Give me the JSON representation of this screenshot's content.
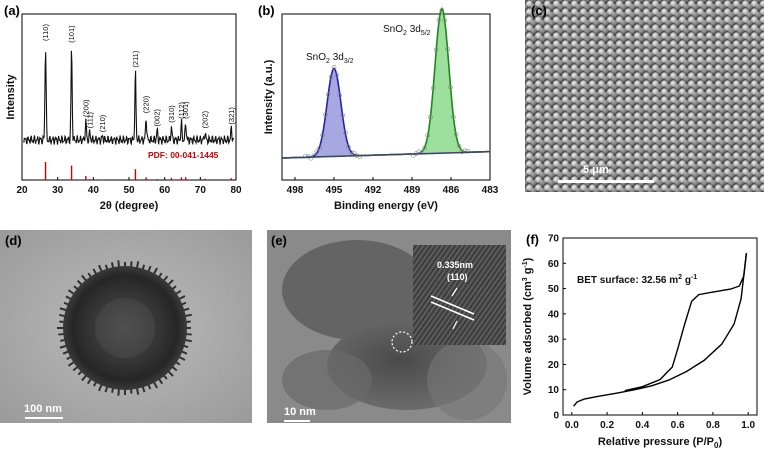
{
  "panels": {
    "a": {
      "label": "(a)"
    },
    "b": {
      "label": "(b)"
    },
    "c": {
      "label": "(c)",
      "scale_bar": "5 μm"
    },
    "d": {
      "label": "(d)",
      "scale_bar": "100 nm"
    },
    "e": {
      "label": "(e)",
      "scale_bar": "10 nm",
      "inset_spacing": "0.335nm",
      "inset_plane": "(110)"
    },
    "f": {
      "label": "(f)"
    }
  },
  "chart_data": [
    {
      "panel": "a",
      "type": "line",
      "xlabel": "2θ (degree)",
      "ylabel": "Intensity",
      "xlim": [
        20,
        80
      ],
      "xticks": [
        20,
        30,
        40,
        50,
        60,
        70,
        80
      ],
      "reference_label": "PDF: 00-041-1445",
      "colors": {
        "pattern": "#111111",
        "reference": "#d40000"
      },
      "peaks": [
        {
          "x": 26.6,
          "label": "(110)",
          "rel_height": 1.0
        },
        {
          "x": 33.9,
          "label": "(101)",
          "rel_height": 0.98
        },
        {
          "x": 37.9,
          "label": "(200)",
          "rel_height": 0.2
        },
        {
          "x": 39.0,
          "label": "(111)",
          "rel_height": 0.08
        },
        {
          "x": 42.6,
          "label": "(210)",
          "rel_height": 0.04
        },
        {
          "x": 51.8,
          "label": "(211)",
          "rel_height": 0.72
        },
        {
          "x": 54.8,
          "label": "(220)",
          "rel_height": 0.24
        },
        {
          "x": 57.9,
          "label": "(002)",
          "rel_height": 0.1
        },
        {
          "x": 61.9,
          "label": "(310)",
          "rel_height": 0.14
        },
        {
          "x": 64.7,
          "label": "(112)",
          "rel_height": 0.18
        },
        {
          "x": 65.9,
          "label": "(301)",
          "rel_height": 0.18
        },
        {
          "x": 71.3,
          "label": "(202)",
          "rel_height": 0.08
        },
        {
          "x": 78.7,
          "label": "(321)",
          "rel_height": 0.12
        }
      ],
      "reference_lines": [
        {
          "x": 26.6,
          "h": 1.0
        },
        {
          "x": 33.9,
          "h": 0.8
        },
        {
          "x": 37.9,
          "h": 0.22
        },
        {
          "x": 39.0,
          "h": 0.05
        },
        {
          "x": 42.6,
          "h": 0.03
        },
        {
          "x": 51.8,
          "h": 0.6
        },
        {
          "x": 54.8,
          "h": 0.15
        },
        {
          "x": 57.9,
          "h": 0.05
        },
        {
          "x": 61.9,
          "h": 0.12
        },
        {
          "x": 64.7,
          "h": 0.15
        },
        {
          "x": 65.9,
          "h": 0.15
        },
        {
          "x": 71.3,
          "h": 0.07
        },
        {
          "x": 78.7,
          "h": 0.1
        }
      ]
    },
    {
      "panel": "b",
      "type": "line",
      "xlabel": "Binding energy (eV)",
      "ylabel": "Intensity (a.u.)",
      "xlim": [
        499,
        483
      ],
      "xticks": [
        498,
        495,
        492,
        489,
        486,
        483
      ],
      "series": [
        {
          "name": "SnO2 3d3/2",
          "center": 495.0,
          "rel_height": 0.53,
          "color": "#2323a8",
          "fill": "#8a8ad8"
        },
        {
          "name": "SnO2 3d5/2",
          "center": 486.7,
          "rel_height": 0.87,
          "color": "#1a8a1a",
          "fill": "#7cd67c"
        }
      ],
      "label_3d32": {
        "base": "SnO",
        "sub1": "2",
        "mid": " 3d",
        "sub2": "3/2"
      },
      "label_3d52": {
        "base": "SnO",
        "sub1": "2",
        "mid": " 3d",
        "sub2": "5/2"
      }
    },
    {
      "panel": "f",
      "type": "line",
      "xlabel": "Relative pressure (P/P",
      "xlabel_sub": "0",
      "xlabel_end": ")",
      "ylabel": "Volume adsorbed (cm",
      "xlim": [
        -0.05,
        1.05
      ],
      "ylim": [
        0,
        70
      ],
      "xticks": [
        0.0,
        0.2,
        0.4,
        0.6,
        0.8,
        1.0
      ],
      "yticks": [
        0,
        10,
        20,
        30,
        40,
        50,
        60,
        70
      ],
      "annotation": "BET surface: 32.56 m",
      "annotation_sup": "2",
      "annotation_end": " g",
      "annotation_sup2": "-1",
      "adsorption": [
        [
          0.01,
          3.5
        ],
        [
          0.03,
          5.2
        ],
        [
          0.07,
          6.3
        ],
        [
          0.15,
          7.4
        ],
        [
          0.25,
          8.6
        ],
        [
          0.35,
          9.9
        ],
        [
          0.45,
          11.5
        ],
        [
          0.55,
          13.8
        ],
        [
          0.65,
          17.2
        ],
        [
          0.75,
          21.6
        ],
        [
          0.85,
          28.0
        ],
        [
          0.92,
          36.0
        ],
        [
          0.96,
          46.0
        ],
        [
          0.99,
          64.0
        ]
      ],
      "desorption": [
        [
          0.99,
          64.0
        ],
        [
          0.975,
          55.0
        ],
        [
          0.95,
          51.0
        ],
        [
          0.9,
          49.8
        ],
        [
          0.8,
          48.6
        ],
        [
          0.72,
          47.6
        ],
        [
          0.68,
          45.0
        ],
        [
          0.64,
          36.0
        ],
        [
          0.6,
          26.0
        ],
        [
          0.57,
          19.0
        ],
        [
          0.5,
          14.0
        ],
        [
          0.4,
          11.2
        ],
        [
          0.3,
          9.6
        ]
      ]
    }
  ]
}
